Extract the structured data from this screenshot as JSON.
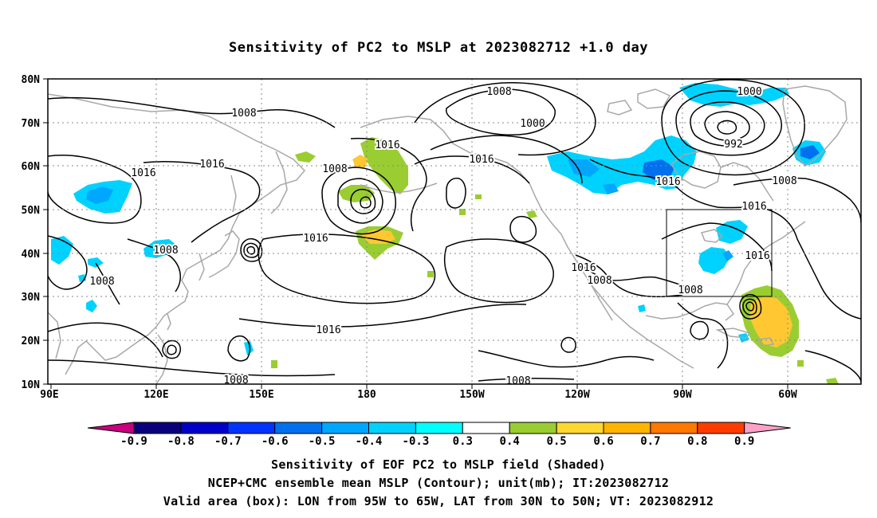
{
  "title": "Sensitivity of PC2 to MSLP at 2023082712 +1.0 day",
  "lat_labels": [
    "80N",
    "70N",
    "60N",
    "50N",
    "40N",
    "30N",
    "20N",
    "10N"
  ],
  "lon_labels": [
    "90E",
    "120E",
    "150E",
    "180",
    "150W",
    "120W",
    "90W",
    "60W"
  ],
  "isobar_labels": [
    {
      "text": "1008"
    },
    {
      "text": "1016"
    },
    {
      "text": "1016"
    },
    {
      "text": "1008"
    },
    {
      "text": "1016"
    },
    {
      "text": "1008"
    },
    {
      "text": "1000"
    },
    {
      "text": "1016"
    },
    {
      "text": "1016"
    },
    {
      "text": "1016"
    },
    {
      "text": "1008"
    },
    {
      "text": "1008"
    },
    {
      "text": "1008"
    },
    {
      "text": "1016"
    },
    {
      "text": "1008"
    },
    {
      "text": "1008"
    },
    {
      "text": "1000"
    },
    {
      "text": "992"
    },
    {
      "text": "1016"
    },
    {
      "text": "1008"
    },
    {
      "text": "1016"
    },
    {
      "text": "1016"
    },
    {
      "text": "1008"
    }
  ],
  "colorbar": {
    "colors": [
      "#0b007c",
      "#0000c8",
      "#0033ff",
      "#0070ef",
      "#00a7ff",
      "#00d2ff",
      "#00ffff",
      "#ffffff",
      "#9acd32",
      "#ffd732",
      "#ffb400",
      "#ff7800",
      "#ff3c00",
      "#ff0000",
      "#ff0000"
    ],
    "left_tip_color": "#c8007d",
    "right_tip_color": "#ffa0c8",
    "tick_labels": [
      "-0.9",
      "-0.8",
      "-0.7",
      "-0.6",
      "-0.5",
      "-0.4",
      "-0.3",
      "0.3",
      "0.4",
      "0.5",
      "0.6",
      "0.7",
      "0.8",
      "0.9"
    ]
  },
  "captions": {
    "line1": "Sensitivity of EOF PC2 to MSLP field (Shaded)",
    "line2": "NCEP+CMC ensemble mean MSLP (Contour); unit(mb); IT:2023082712",
    "line3": "Valid area (box): LON from 95W to 65W, LAT from 30N to 50N; VT: 2023082912"
  },
  "colors": {
    "land": "#a8a8a8",
    "contour": "#000000",
    "grid": "#888888",
    "neg_light": "#00d2ff",
    "neg_mid": "#00a7ff",
    "neg_dark": "#0070ef",
    "pos_green": "#9acd32",
    "pos_yellow": "#ffc832"
  }
}
